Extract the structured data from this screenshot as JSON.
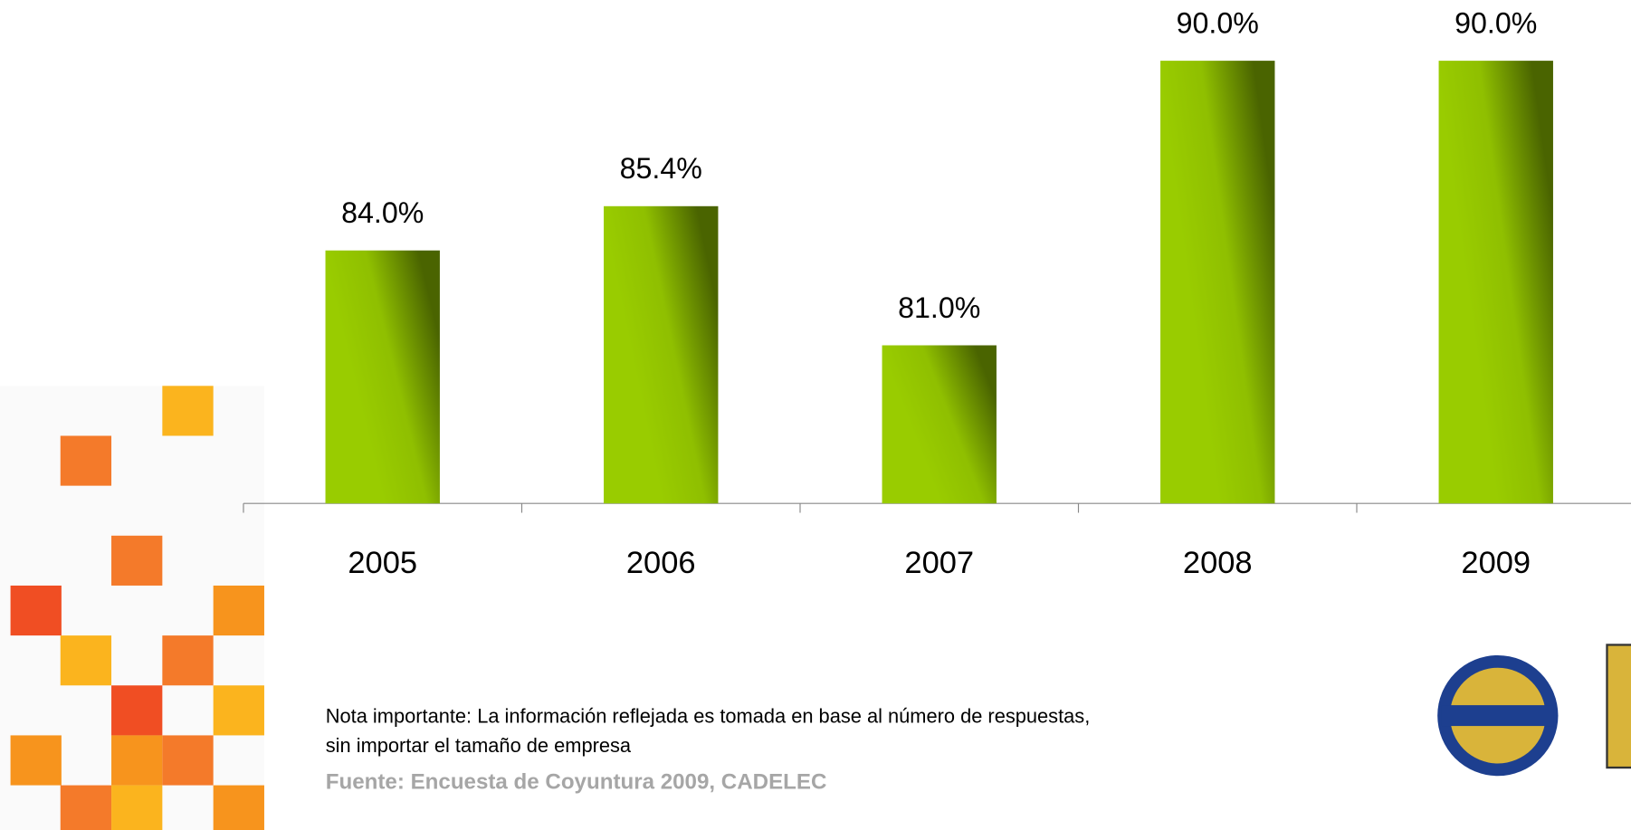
{
  "chart_data": {
    "type": "bar",
    "categories": [
      "2005",
      "2006",
      "2007",
      "2008",
      "2009"
    ],
    "values": [
      84.0,
      85.4,
      81.0,
      90.0,
      90.0
    ],
    "value_labels": [
      "84.0%",
      "85.4%",
      "81.0%",
      "90.0%",
      "90.0%"
    ],
    "color": "#99cc00",
    "ylim": [
      76,
      91
    ],
    "note": [
      "Nota importante: La información reflejada es tomada en base al número de respuestas,",
      "sin importar el tamaño de empresa"
    ],
    "source": "Fuente: Encuesta de Coyuntura 2009, CADELEC"
  }
}
